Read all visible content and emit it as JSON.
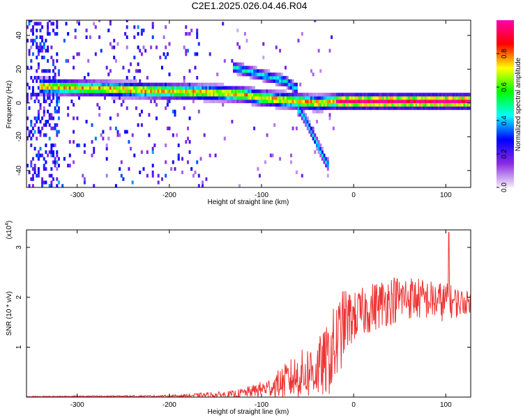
{
  "title": "C2E1.2025.026.04.46.R04",
  "chart_data": [
    {
      "type": "heatmap",
      "xlabel": "Height of straight line (km)",
      "ylabel": "Frequency (Hz)",
      "xlim": [
        -355,
        127
      ],
      "ylim": [
        -50,
        49
      ],
      "xticks": [
        -300,
        -200,
        -100,
        0,
        100
      ],
      "yticks": [
        -40,
        -20,
        0,
        20,
        40
      ],
      "colorbar": {
        "label": "Normalized spectral amplitude",
        "range": [
          0.0,
          1.0
        ],
        "ticks": [
          0.0,
          0.2,
          0.4,
          0.6,
          0.8
        ],
        "colors": [
          "#f4eefa",
          "#8a2be2",
          "#0000ff",
          "#00ffff",
          "#00ff00",
          "#ffff00",
          "#ff0000",
          "#ff00aa"
        ]
      },
      "ridges": [
        {
          "x": [
            -340,
            -300,
            -250,
            -200,
            -150,
            -120,
            -100,
            -80,
            -60,
            -40,
            -20,
            0,
            50,
            100,
            127
          ],
          "y": [
            9,
            8,
            7,
            6,
            5,
            4,
            2,
            1,
            0,
            -1,
            0,
            0,
            0,
            0,
            0
          ]
        },
        {
          "x": [
            -130,
            -110,
            -90,
            -75,
            -65
          ],
          "y": [
            20,
            17,
            14,
            12,
            8
          ]
        },
        {
          "x": [
            -60,
            -52,
            -45,
            -38,
            -30
          ],
          "y": [
            -5,
            -12,
            -20,
            -28,
            -37
          ]
        }
      ]
    },
    {
      "type": "line",
      "xlabel": "Height of straight line (km)",
      "ylabel": "SNR (10 * v/v)",
      "multiplier": "(x10",
      "multiplier_exp": "4",
      "multiplier_close": ")",
      "xlim": [
        -355,
        127
      ],
      "ylim": [
        0,
        3.35
      ],
      "xticks": [
        -300,
        -200,
        -100,
        0,
        100
      ],
      "yticks": [
        1,
        2,
        3
      ],
      "color": "#ee3333",
      "envelope": {
        "x": [
          -355,
          -200,
          -130,
          -110,
          -90,
          -70,
          -50,
          -40,
          -30,
          -20,
          -10,
          0,
          20,
          40,
          60,
          80,
          100,
          127
        ],
        "mean": [
          0.01,
          0.02,
          0.05,
          0.12,
          0.2,
          0.35,
          0.5,
          0.55,
          0.7,
          1.0,
          1.5,
          1.6,
          1.8,
          1.95,
          2.0,
          1.95,
          1.9,
          1.9
        ],
        "spread": [
          0.01,
          0.02,
          0.08,
          0.12,
          0.2,
          0.4,
          0.55,
          0.6,
          0.7,
          0.9,
          0.7,
          0.5,
          0.5,
          0.5,
          0.45,
          0.4,
          0.4,
          0.2
        ]
      }
    }
  ]
}
